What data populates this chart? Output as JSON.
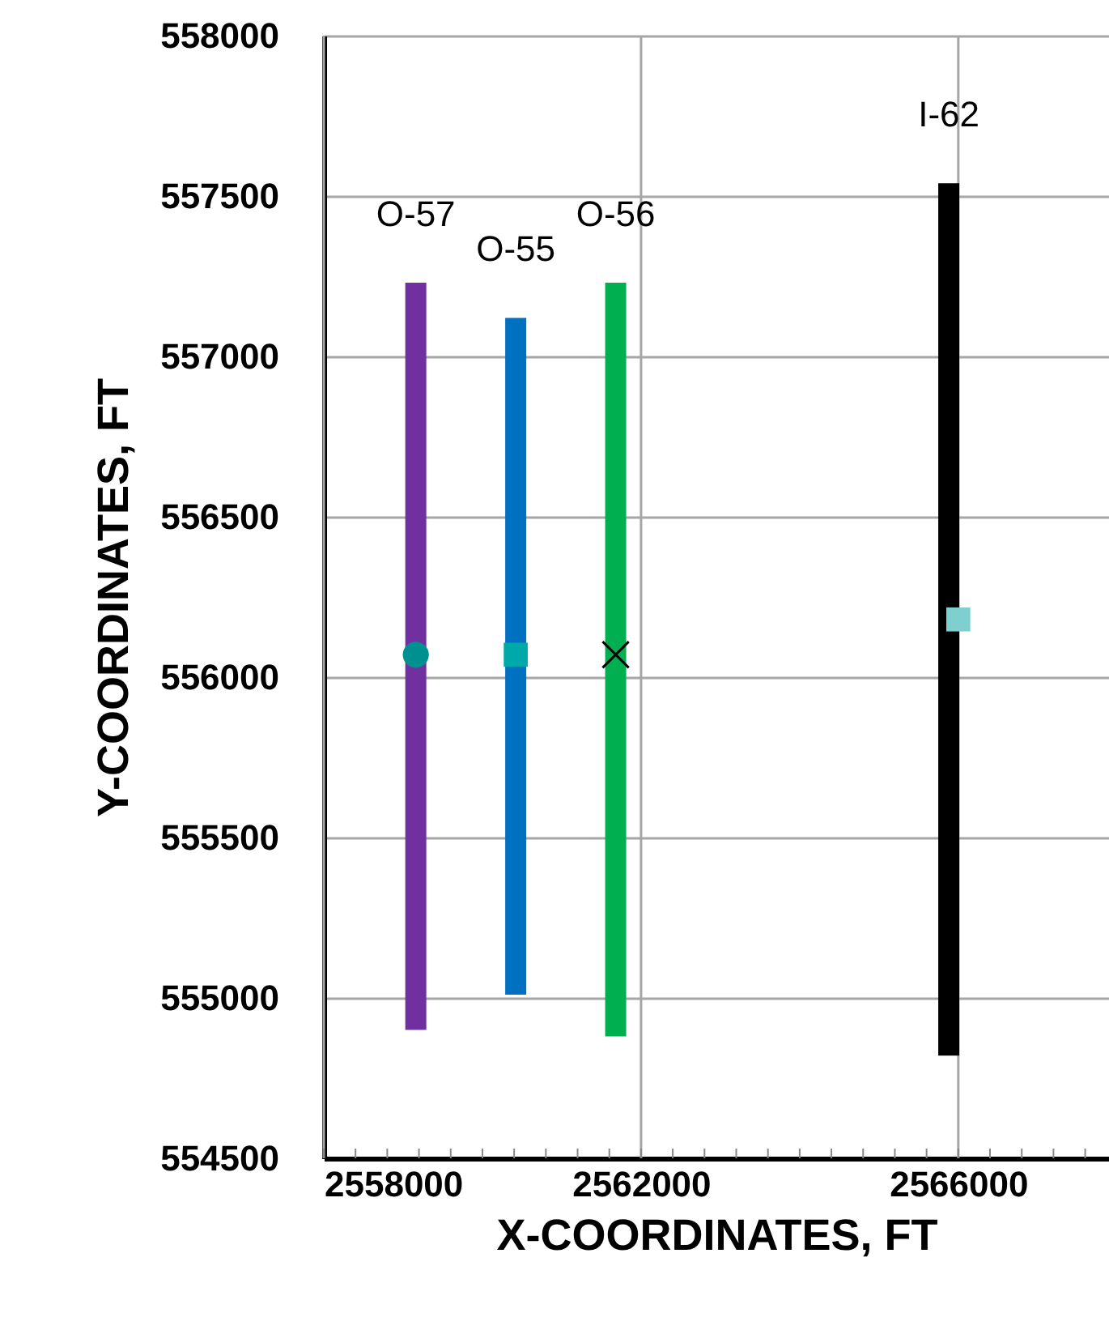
{
  "chart_data": {
    "type": "line",
    "xlabel": "X-COORDINATES, FT",
    "ylabel": "Y-COORDINATES, FT",
    "xlim": [
      2558000,
      2567900
    ],
    "ylim": [
      554500,
      558000
    ],
    "xticks": [
      2558000,
      {
        "value": 2558400,
        "label": null
      },
      {
        "value": 2558800,
        "label": null
      },
      {
        "value": 2559200,
        "label": null
      },
      {
        "value": 2559600,
        "label": null
      },
      {
        "value": 2560000,
        "label": null
      },
      {
        "value": 2560400,
        "label": null
      },
      {
        "value": 2560800,
        "label": null
      },
      {
        "value": 2561200,
        "label": null
      },
      {
        "value": 2561600,
        "label": null
      },
      2562000,
      {
        "value": 2562400,
        "label": null
      },
      {
        "value": 2562800,
        "label": null
      },
      {
        "value": 2563200,
        "label": null
      },
      {
        "value": 2563600,
        "label": null
      },
      {
        "value": 2564000,
        "label": null
      },
      {
        "value": 2564400,
        "label": null
      },
      {
        "value": 2564800,
        "label": null
      },
      {
        "value": 2565200,
        "label": null
      },
      {
        "value": 2565600,
        "label": null
      },
      2566000,
      {
        "value": 2566400,
        "label": null
      },
      {
        "value": 2566800,
        "label": null
      },
      {
        "value": 2567200,
        "label": null
      },
      {
        "value": 2567600,
        "label": null
      }
    ],
    "yticks": [
      554500,
      555000,
      555500,
      556000,
      556500,
      557000,
      557500,
      558000
    ],
    "grid": true,
    "series": [
      {
        "name": "O-57",
        "color": "#7030a0",
        "x": [
          2559160,
          2559160
        ],
        "values": [
          554900,
          557230
        ]
      },
      {
        "name": "O-55",
        "color": "#0070c0",
        "x": [
          2560420,
          2560420
        ],
        "values": [
          555010,
          557120
        ]
      },
      {
        "name": "O-56",
        "color": "#00b050",
        "x": [
          2561680,
          2561680
        ],
        "values": [
          554880,
          557230
        ]
      },
      {
        "name": "I-62",
        "color": "#000000",
        "x": [
          2565880,
          2565880
        ],
        "values": [
          554820,
          557540
        ]
      },
      {
        "type": "scatter",
        "marker": "circle",
        "color": "#00908f",
        "x": [
          2559160
        ],
        "values": [
          556070
        ]
      },
      {
        "type": "scatter",
        "marker": "square",
        "color": "#00a9a9",
        "x": [
          2560420
        ],
        "values": [
          556070
        ]
      },
      {
        "type": "scatter",
        "marker": "cross",
        "color": "#000000",
        "x": [
          2561680
        ],
        "values": [
          556070
        ]
      },
      {
        "type": "scatter",
        "marker": "square",
        "color": "#7fcfcf",
        "x": [
          2566000
        ],
        "values": [
          556180
        ]
      }
    ]
  }
}
